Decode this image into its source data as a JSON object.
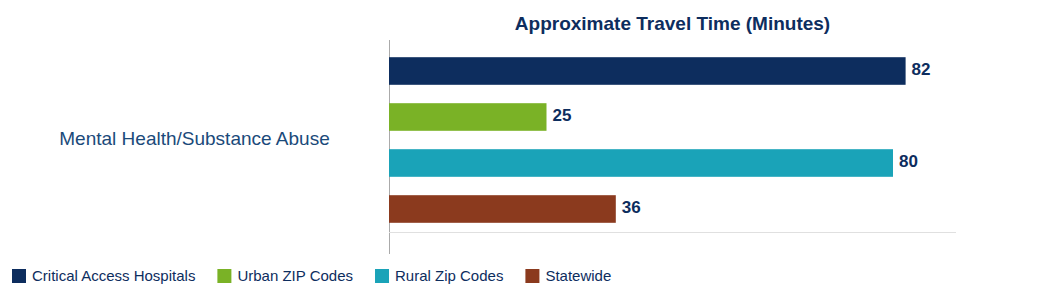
{
  "chart_data": {
    "type": "bar",
    "orientation": "horizontal",
    "title": "Approximate Travel Time (Minutes)",
    "categories": [
      "Mental Health/Substance Abuse"
    ],
    "series": [
      {
        "name": "Critical Access Hospitals",
        "color": "#0d2d5e",
        "values": [
          82
        ]
      },
      {
        "name": "Urban ZIP Codes",
        "color": "#7ab226",
        "values": [
          25
        ]
      },
      {
        "name": "Rural Zip Codes",
        "color": "#1aa3b8",
        "values": [
          80
        ]
      },
      {
        "name": "Statewide",
        "color": "#8b3a1e",
        "values": [
          36
        ]
      }
    ],
    "xlim": [
      0,
      90
    ],
    "data_labels": true,
    "tick_labels": false,
    "grid": false,
    "legend": "lower left"
  }
}
